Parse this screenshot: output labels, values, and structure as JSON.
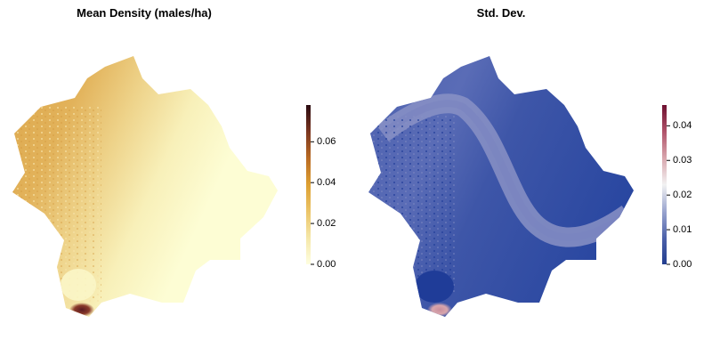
{
  "panels": [
    {
      "title": "Mean Density (males/ha)",
      "colorbar": {
        "colors": [
          "#fefee0",
          "#f5e7a8",
          "#ebc467",
          "#dda032",
          "#b96a23",
          "#7a3520",
          "#2a0a10"
        ],
        "range": [
          0,
          0.078
        ],
        "ticks": [
          {
            "value": 0.0,
            "label": "0.00"
          },
          {
            "value": 0.02,
            "label": "0.02"
          },
          {
            "value": 0.04,
            "label": "0.04"
          },
          {
            "value": 0.06,
            "label": "0.06"
          }
        ]
      }
    },
    {
      "title": "Std. Dev.",
      "colorbar": {
        "colors": [
          "#223d8f",
          "#4d62aa",
          "#9aa5cf",
          "#f2f2f2",
          "#d8a6ad",
          "#b0536a",
          "#6e1030"
        ],
        "range": [
          0,
          0.046
        ],
        "ticks": [
          {
            "value": 0.0,
            "label": "0.00"
          },
          {
            "value": 0.01,
            "label": "0.01"
          },
          {
            "value": 0.02,
            "label": "0.02"
          },
          {
            "value": 0.03,
            "label": "0.03"
          },
          {
            "value": 0.04,
            "label": "0.04"
          }
        ]
      }
    }
  ],
  "map_colors": {
    "density_low": "#fdfdd4",
    "density_mid": "#eed38a",
    "density_high": "#dba54a",
    "density_peak": "#5a1a22",
    "sd_low": "#2846a0",
    "sd_mid": "#5a6cb6",
    "sd_band": "#8a92c6",
    "sd_peak": "#c98e9c"
  }
}
